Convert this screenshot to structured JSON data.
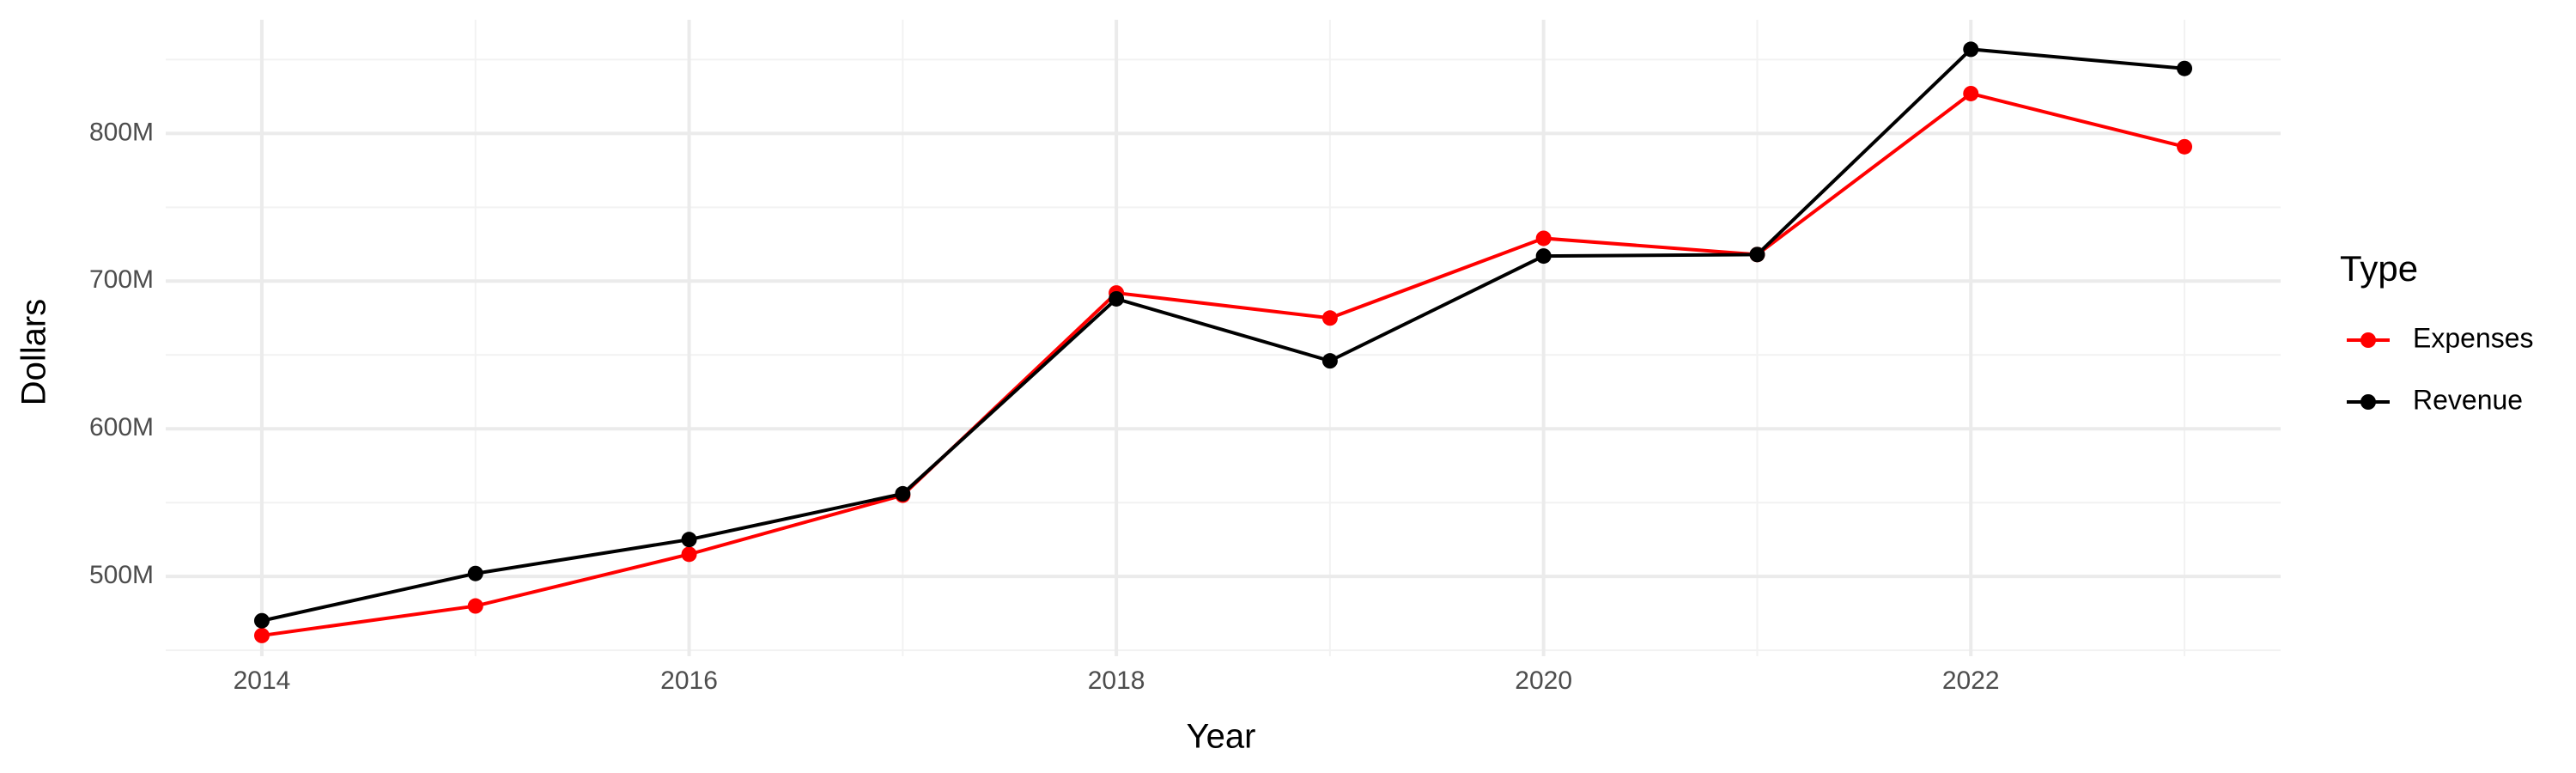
{
  "chart_data": {
    "type": "line",
    "x": [
      2014,
      2015,
      2016,
      2017,
      2018,
      2019,
      2020,
      2021,
      2022,
      2023
    ],
    "series": [
      {
        "name": "Expenses",
        "color": "#ff0000",
        "values": [
          460000000,
          480000000,
          515000000,
          555000000,
          692000000,
          675000000,
          729000000,
          718000000,
          827000000,
          791000000
        ]
      },
      {
        "name": "Revenue",
        "color": "#000000",
        "values": [
          470000000,
          502000000,
          525000000,
          556000000,
          688000000,
          646000000,
          717000000,
          718000000,
          857000000,
          844000000
        ]
      }
    ],
    "xlim": [
      2013.55,
      2023.45
    ],
    "xticks": [
      2014,
      2016,
      2018,
      2020,
      2022
    ],
    "ylim": [
      446000000,
      877000000
    ],
    "yticks": [
      {
        "value": 500000000,
        "label": "500M"
      },
      {
        "value": 600000000,
        "label": "600M"
      },
      {
        "value": 700000000,
        "label": "700M"
      },
      {
        "value": 800000000,
        "label": "800M"
      }
    ],
    "x_label": "Year",
    "y_label": "Dollars",
    "legend_title": "Type",
    "legend": "right",
    "grid": true
  }
}
